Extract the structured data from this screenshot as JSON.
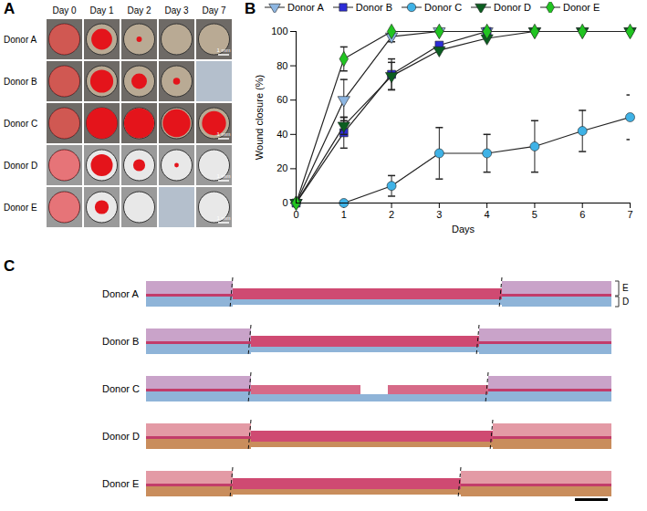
{
  "panel_labels": [
    "A",
    "B",
    "C"
  ],
  "panel_a": {
    "days": [
      "Day 0",
      "Day 1",
      "Day 2",
      "Day 3",
      "Day 7"
    ],
    "donors": [
      "Donor A",
      "Donor B",
      "Donor C",
      "Donor D",
      "Donor E"
    ],
    "wound_area_percent": [
      [
        100,
        45,
        3,
        0,
        0
      ],
      [
        100,
        55,
        25,
        5,
        null
      ],
      [
        100,
        100,
        95,
        80,
        60
      ],
      [
        100,
        50,
        15,
        2,
        0
      ],
      [
        100,
        20,
        0,
        null,
        0
      ]
    ],
    "scale_bar": "1 mm"
  },
  "chart_data": {
    "type": "line",
    "xlabel": "Days",
    "ylabel": "Wound closure (%)",
    "x": [
      0,
      1,
      2,
      3,
      4,
      5,
      6,
      7
    ],
    "xlim": [
      0,
      7
    ],
    "xticks": [
      0,
      1,
      2,
      3,
      4,
      5,
      6,
      7
    ],
    "ylim": [
      0,
      100
    ],
    "yticks": [
      0,
      20,
      40,
      60,
      80,
      100
    ],
    "legend": "top",
    "series": [
      {
        "name": "Donor A",
        "color": "#8db6e2",
        "marker": "triangle-down",
        "values": [
          0,
          60,
          97,
          100,
          100,
          100,
          100,
          100
        ],
        "errors": [
          0,
          12,
          3,
          0,
          0,
          0,
          0,
          0
        ]
      },
      {
        "name": "Donor B",
        "color": "#2d2dd8",
        "marker": "square",
        "values": [
          0,
          41,
          75,
          92,
          100,
          null,
          null,
          null
        ],
        "errors": [
          0,
          9,
          9,
          0,
          0,
          0,
          0,
          0
        ]
      },
      {
        "name": "Donor C",
        "color": "#3fb2e6",
        "marker": "circle",
        "values": [
          0,
          0,
          10,
          29,
          29,
          33,
          42,
          50
        ],
        "errors": [
          0,
          0,
          6,
          15,
          11,
          15,
          12,
          13
        ]
      },
      {
        "name": "Donor D",
        "color": "#0b5e20",
        "marker": "triangle-down",
        "values": [
          0,
          45,
          74,
          89,
          96,
          100,
          100,
          100
        ],
        "errors": [
          0,
          5,
          8,
          0,
          0,
          0,
          0,
          0
        ]
      },
      {
        "name": "Donor E",
        "color": "#21c421",
        "marker": "diamond",
        "values": [
          0,
          84,
          100,
          100,
          100,
          100,
          100,
          100
        ],
        "errors": [
          0,
          7,
          0,
          0,
          0,
          0,
          0,
          0
        ]
      }
    ]
  },
  "panel_c": {
    "donors": [
      "Donor A",
      "Donor B",
      "Donor C",
      "Donor D",
      "Donor E"
    ],
    "layer_labels": [
      "E",
      "D"
    ]
  }
}
